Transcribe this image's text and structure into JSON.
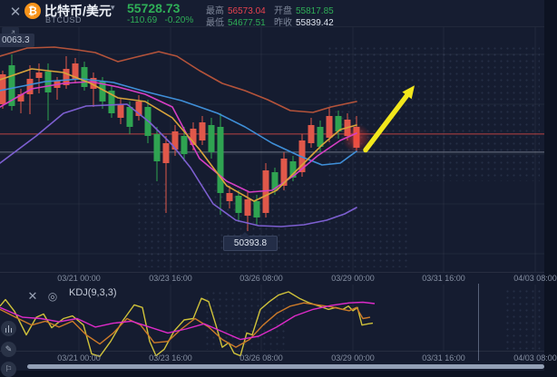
{
  "header": {
    "close_label": "✕",
    "symbol": {
      "name": "比特币/美元",
      "code": "BTCUSD",
      "caret": "▾",
      "btc_glyph": "₿"
    },
    "price": "55728.73",
    "change": "-110.69",
    "change_pct": "-0.20%",
    "stats": [
      {
        "label": "最高",
        "value": "56573.04",
        "color": "#e8434f"
      },
      {
        "label": "最低",
        "value": "54677.51",
        "color": "#2fae57"
      },
      {
        "label": "开盘",
        "value": "55817.85",
        "color": "#2fae57"
      },
      {
        "label": "昨收",
        "value": "55839.42",
        "color": "#dde3ee"
      }
    ]
  },
  "icons": {
    "expand": "⤢",
    "settings": "◎",
    "pencil": "✎",
    "flag": "⚐"
  },
  "left_price_label": "0063.3",
  "low_label": "50393.8",
  "kdj_header": {
    "title": "KDJ(9,3,3)"
  },
  "x_axis": {
    "labels": [
      "03/21 00:00",
      "03/23 16:00",
      "03/26 08:00",
      "03/29 00:00",
      "03/31 16:00",
      "04/03 08:00"
    ],
    "positions": [
      87,
      188,
      288,
      389,
      489,
      590
    ]
  },
  "colors": {
    "up": "#e0584a",
    "down": "#2fa351",
    "price_line": "#d64b47",
    "gray_line": "#c9d0dc",
    "arrow": "#f2e71c",
    "glow": "#ff3c32"
  },
  "chart_data": {
    "type": "candlestick",
    "title": "BTCUSD candlestick chart with band/MA overlays and KDJ(9,3,3) oscillator",
    "up_means": "red (Chinese convention)",
    "down_means": "green",
    "price_axis": {
      "top": 61700,
      "bottom": 48250
    },
    "h_gridline_prices": [
      60106,
      57366,
      54626,
      51886,
      49147
    ],
    "current_price": 55728.73,
    "marked_low": 50393.8,
    "levels": [
      {
        "price": 55728.73,
        "color": "#d64b47",
        "opacity": 0.85
      },
      {
        "price": 54730,
        "color": "#c9d0dc",
        "opacity": 0.5
      }
    ],
    "x_start": 3,
    "x_step": 10,
    "candles_ohlc": [
      [
        57366,
        59209,
        57117,
        59010
      ],
      [
        59508,
        60106,
        57018,
        57267
      ],
      [
        57516,
        58213,
        56868,
        57914
      ],
      [
        57914,
        59508,
        56818,
        58761
      ],
      [
        58811,
        59608,
        57964,
        59110
      ],
      [
        59160,
        59608,
        56470,
        58014
      ],
      [
        58263,
        58861,
        57615,
        58661
      ],
      [
        58412,
        60006,
        58213,
        59309
      ],
      [
        58711,
        59906,
        58512,
        59608
      ],
      [
        59409,
        59707,
        58113,
        58313
      ],
      [
        58213,
        59110,
        57217,
        58811
      ],
      [
        58611,
        58861,
        57117,
        57516
      ],
      [
        58113,
        58362,
        56619,
        56868
      ],
      [
        56619,
        57715,
        56270,
        57366
      ],
      [
        57217,
        57516,
        55723,
        56121
      ],
      [
        56719,
        57864,
        56470,
        57516
      ],
      [
        57217,
        57615,
        55224,
        55623
      ],
      [
        55723,
        56121,
        53133,
        54228
      ],
      [
        54129,
        55623,
        51390,
        55224
      ],
      [
        54876,
        56221,
        54527,
        55872
      ],
      [
        55623,
        56121,
        54228,
        54627
      ],
      [
        55125,
        56370,
        54826,
        56022
      ],
      [
        55374,
        56719,
        55125,
        56370
      ],
      [
        56221,
        56619,
        54378,
        54726
      ],
      [
        56121,
        56868,
        51290,
        52485
      ],
      [
        52037,
        52884,
        51639,
        52485
      ],
      [
        52336,
        52635,
        50892,
        51390
      ],
      [
        51240,
        52535,
        50393.8,
        52137
      ],
      [
        52037,
        52386,
        50742,
        51141
      ],
      [
        51390,
        54129,
        51141,
        53730
      ],
      [
        53631,
        53880,
        52386,
        52635
      ],
      [
        52884,
        54726,
        52635,
        54378
      ],
      [
        54228,
        54527,
        53133,
        53332
      ],
      [
        53631,
        55723,
        53382,
        55374
      ],
      [
        55224,
        56619,
        54975,
        56221
      ],
      [
        56121,
        56470,
        54726,
        55025
      ],
      [
        55523,
        57217,
        55274,
        56719
      ],
      [
        56719,
        57018,
        55473,
        55872
      ],
      [
        55623,
        56868,
        55374,
        56520
      ],
      [
        54975,
        56719,
        54726,
        56121
      ]
    ],
    "overlays": [
      {
        "name": "upper-band",
        "color": "#b4533a",
        "points": [
          [
            0,
            60006
          ],
          [
            30,
            60454
          ],
          [
            60,
            60504
          ],
          [
            85,
            60355
          ],
          [
            105,
            60205
          ],
          [
            130,
            59707
          ],
          [
            150,
            59956
          ],
          [
            175,
            60255
          ],
          [
            195,
            60006
          ],
          [
            220,
            59209
          ],
          [
            245,
            58512
          ],
          [
            270,
            58113
          ],
          [
            295,
            57615
          ],
          [
            320,
            57018
          ],
          [
            345,
            56918
          ],
          [
            365,
            57217
          ],
          [
            393,
            57516
          ]
        ]
      },
      {
        "name": "middle-band",
        "color": "#3f8fd8",
        "points": [
          [
            0,
            58113
          ],
          [
            50,
            58611
          ],
          [
            90,
            58761
          ],
          [
            125,
            58562
          ],
          [
            160,
            58063
          ],
          [
            200,
            57565
          ],
          [
            240,
            56868
          ],
          [
            270,
            56121
          ],
          [
            300,
            55224
          ],
          [
            330,
            54527
          ],
          [
            355,
            54029
          ],
          [
            375,
            54129
          ],
          [
            393,
            54776
          ]
        ]
      },
      {
        "name": "magenta-ma",
        "color": "#d63ec4",
        "points": [
          [
            0,
            57217
          ],
          [
            35,
            58213
          ],
          [
            70,
            58512
          ],
          [
            100,
            58611
          ],
          [
            130,
            58313
          ],
          [
            160,
            57914
          ],
          [
            190,
            57217
          ],
          [
            220,
            54378
          ],
          [
            250,
            53133
          ],
          [
            275,
            52535
          ],
          [
            300,
            52635
          ],
          [
            325,
            53481
          ],
          [
            350,
            54527
          ],
          [
            375,
            55374
          ],
          [
            393,
            55772
          ]
        ]
      },
      {
        "name": "yellow-ma",
        "color": "#d9a43b",
        "points": [
          [
            0,
            58711
          ],
          [
            35,
            59309
          ],
          [
            70,
            59110
          ],
          [
            100,
            58512
          ],
          [
            130,
            57715
          ],
          [
            160,
            57516
          ],
          [
            190,
            56619
          ],
          [
            220,
            54876
          ],
          [
            250,
            52884
          ],
          [
            280,
            52037
          ],
          [
            305,
            52635
          ],
          [
            330,
            53880
          ],
          [
            355,
            55125
          ],
          [
            375,
            55972
          ],
          [
            393,
            56221
          ]
        ]
      },
      {
        "name": "lower-band",
        "color": "#7d5fd1",
        "points": [
          [
            0,
            54129
          ],
          [
            40,
            55623
          ],
          [
            70,
            56868
          ],
          [
            95,
            57267
          ],
          [
            140,
            57366
          ],
          [
            165,
            56370
          ],
          [
            190,
            55125
          ],
          [
            210,
            53880
          ],
          [
            235,
            51886
          ],
          [
            260,
            50990
          ],
          [
            285,
            50691
          ],
          [
            310,
            50641
          ],
          [
            335,
            50741
          ],
          [
            360,
            50990
          ],
          [
            380,
            51339
          ],
          [
            393,
            51688
          ]
        ]
      }
    ],
    "annotation_arrow": {
      "tail": [
        403,
        54850
      ],
      "head": [
        457,
        58400
      ],
      "color": "#f2e71c"
    },
    "glow": {
      "x": 393,
      "price": 55500
    },
    "kdj": {
      "params": "(9,3,3)",
      "range": [
        0,
        100
      ],
      "series": [
        {
          "name": "K",
          "color": "#cfc23a",
          "points": [
            [
              0,
              78
            ],
            [
              6,
              88
            ],
            [
              16,
              70
            ],
            [
              29,
              34
            ],
            [
              40,
              61
            ],
            [
              48,
              66
            ],
            [
              57,
              45
            ],
            [
              70,
              59
            ],
            [
              80,
              63
            ],
            [
              92,
              49
            ],
            [
              101,
              5
            ],
            [
              110,
              1
            ],
            [
              122,
              24
            ],
            [
              135,
              55
            ],
            [
              148,
              80
            ],
            [
              157,
              76
            ],
            [
              165,
              24
            ],
            [
              172,
              2
            ],
            [
              181,
              12
            ],
            [
              192,
              40
            ],
            [
              203,
              57
            ],
            [
              213,
              59
            ],
            [
              222,
              90
            ],
            [
              230,
              85
            ],
            [
              238,
              49
            ],
            [
              245,
              15
            ],
            [
              252,
              22
            ],
            [
              258,
              6
            ],
            [
              265,
              2
            ],
            [
              272,
              37
            ],
            [
              278,
              34
            ],
            [
              287,
              73
            ],
            [
              297,
              85
            ],
            [
              307,
              95
            ],
            [
              318,
              100
            ],
            [
              330,
              90
            ],
            [
              341,
              83
            ],
            [
              352,
              78
            ],
            [
              362,
              73
            ],
            [
              370,
              76
            ],
            [
              378,
              73
            ],
            [
              384,
              78
            ],
            [
              389,
              71
            ],
            [
              394,
              76
            ],
            [
              399,
              49
            ],
            [
              406,
              51
            ],
            [
              411,
              52
            ]
          ]
        },
        {
          "name": "D",
          "color": "#cc7a29",
          "points": [
            [
              0,
              73
            ],
            [
              20,
              59
            ],
            [
              35,
              49
            ],
            [
              50,
              55
            ],
            [
              65,
              46
            ],
            [
              80,
              55
            ],
            [
              95,
              34
            ],
            [
              110,
              20
            ],
            [
              125,
              37
            ],
            [
              140,
              59
            ],
            [
              155,
              49
            ],
            [
              170,
              22
            ],
            [
              185,
              24
            ],
            [
              200,
              43
            ],
            [
              215,
              59
            ],
            [
              230,
              46
            ],
            [
              245,
              27
            ],
            [
              260,
              15
            ],
            [
              275,
              27
            ],
            [
              290,
              49
            ],
            [
              305,
              67
            ],
            [
              320,
              78
            ],
            [
              335,
              83
            ],
            [
              350,
              80
            ],
            [
              365,
              77
            ],
            [
              378,
              73
            ],
            [
              385,
              71
            ],
            [
              393,
              76
            ],
            [
              400,
              59
            ],
            [
              408,
              61
            ]
          ]
        },
        {
          "name": "J",
          "color": "#dd2bc8",
          "points": [
            [
              0,
              76
            ],
            [
              25,
              61
            ],
            [
              45,
              59
            ],
            [
              65,
              54
            ],
            [
              85,
              59
            ],
            [
              105,
              46
            ],
            [
              125,
              52
            ],
            [
              145,
              55
            ],
            [
              165,
              46
            ],
            [
              185,
              37
            ],
            [
              205,
              43
            ],
            [
              225,
              51
            ],
            [
              245,
              39
            ],
            [
              265,
              27
            ],
            [
              285,
              32
            ],
            [
              305,
              46
            ],
            [
              325,
              63
            ],
            [
              345,
              73
            ],
            [
              365,
              79
            ],
            [
              385,
              83
            ],
            [
              400,
              84
            ],
            [
              413,
              82
            ]
          ]
        }
      ]
    }
  }
}
